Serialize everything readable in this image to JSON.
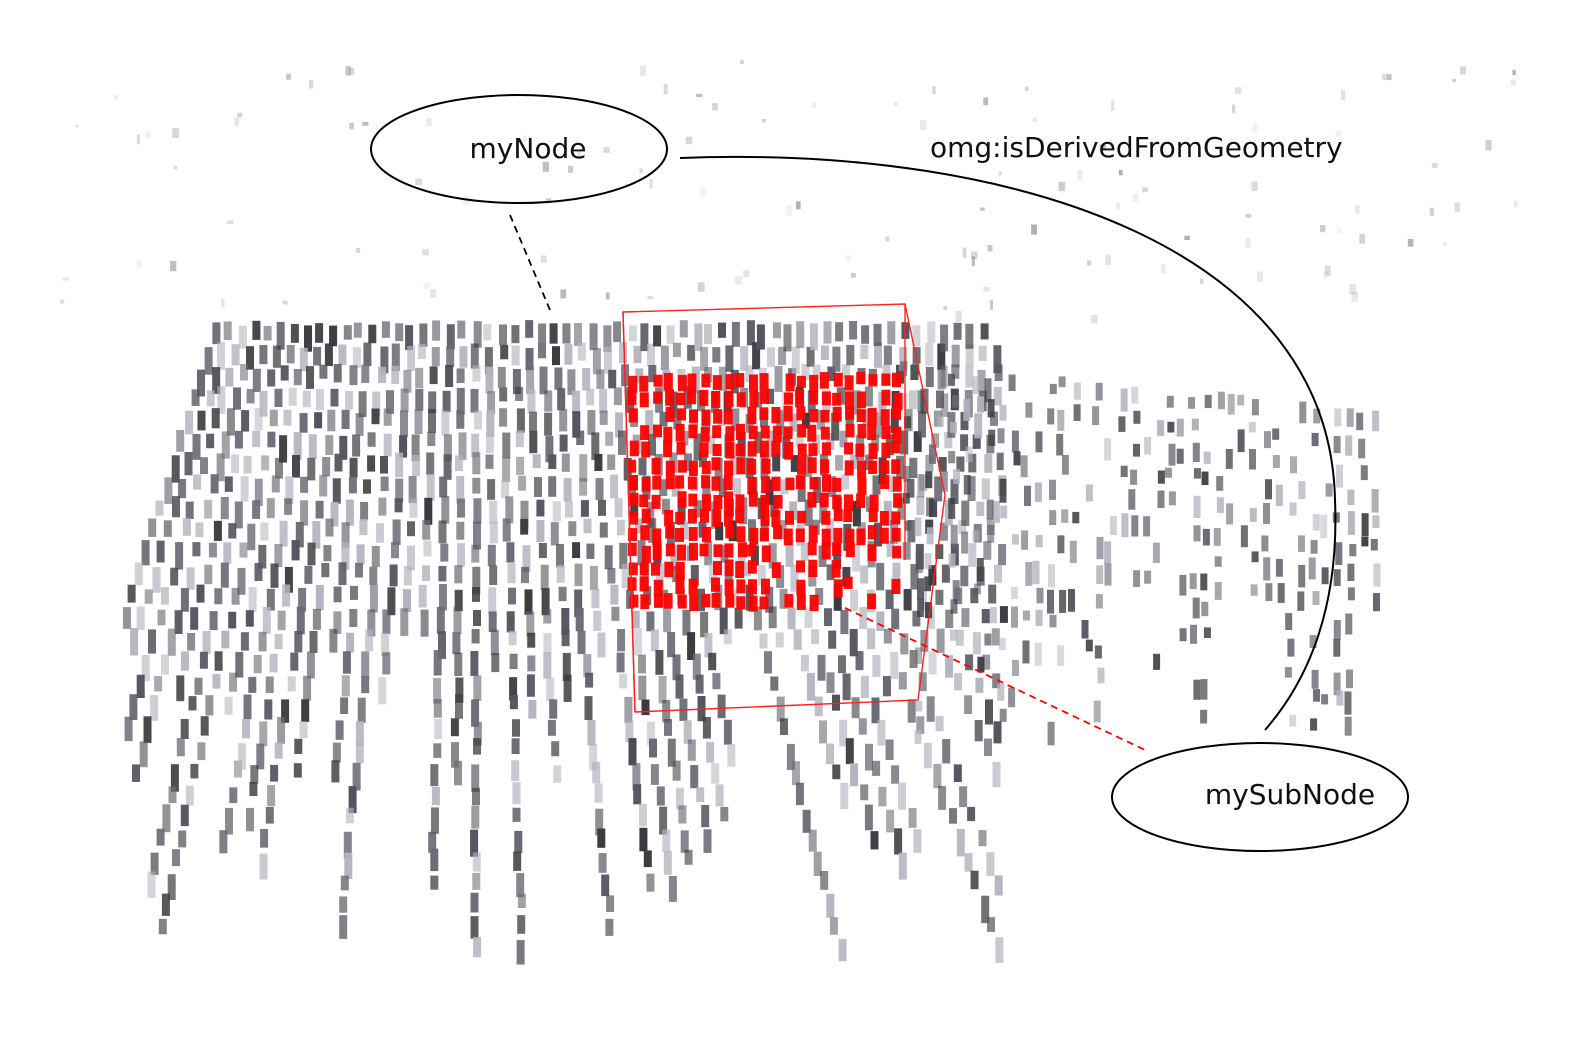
{
  "nodes": {
    "parent": {
      "label": "myNode"
    },
    "child": {
      "label": "mySubNode"
    }
  },
  "relation": {
    "label": "omg:isDerivedFromGeometry"
  },
  "colors": {
    "highlight": "#ff0000",
    "voxel_dark": "#3a3a40",
    "voxel_mid": "#6a6a74",
    "voxel_light": "#b4b4c0",
    "ink": "#000000"
  }
}
